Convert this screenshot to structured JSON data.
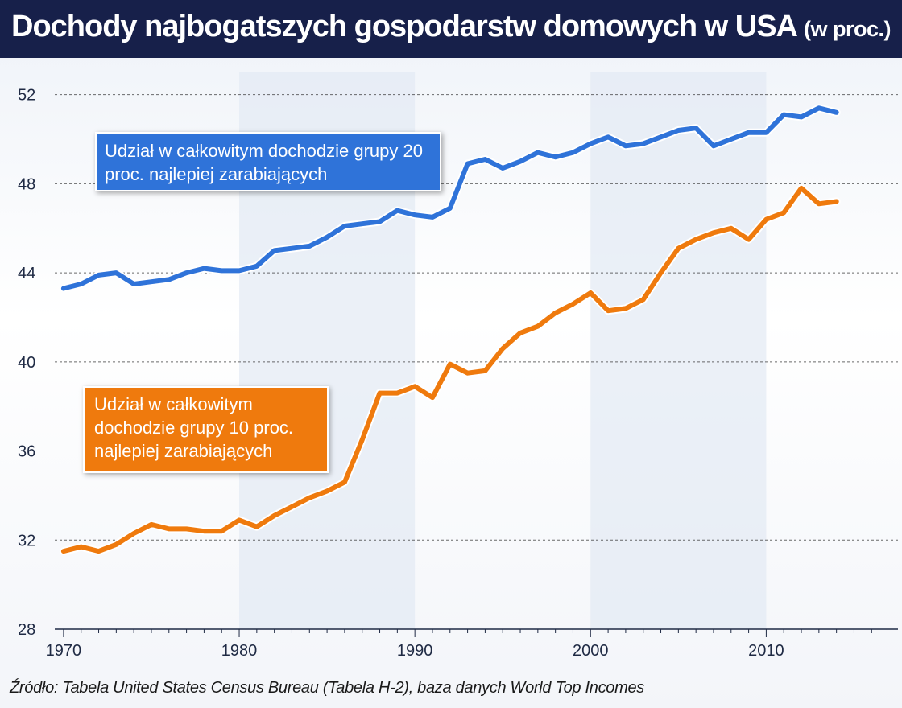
{
  "header": {
    "title": "Dochody najbogatszych gospodarstw domowych w USA",
    "unit": "(w proc.)"
  },
  "callouts": {
    "top20": "Udział w całkowitym dochodzie grupy 20 proc. najlepiej zarabiających",
    "top10": "Udział w całkowitym dochodzie grupy 10 proc. najlepiej zarabiających"
  },
  "source": "Źródło: Tabela United States Census Bureau (Tabela H-2), baza danych World Top Incomes",
  "chart_data": {
    "type": "line",
    "title": "Dochody najbogatszych gospodarstw domowych w USA (w proc.)",
    "xlabel": "",
    "ylabel": "",
    "xlim": [
      1969.5,
      2017.5
    ],
    "ylim": [
      28,
      53
    ],
    "xticks": [
      1970,
      1980,
      1990,
      2000,
      2010
    ],
    "yticks": [
      28,
      32,
      36,
      40,
      44,
      48,
      52
    ],
    "grid": "horizontal dashed",
    "series": [
      {
        "name": "Udział w całkowitym dochodzie grupy 20 proc. najlepiej zarabiających",
        "color": "#2f73d9",
        "x": [
          1970,
          1971,
          1972,
          1973,
          1974,
          1975,
          1976,
          1977,
          1978,
          1979,
          1980,
          1981,
          1982,
          1983,
          1984,
          1985,
          1986,
          1987,
          1988,
          1989,
          1990,
          1991,
          1992,
          1993,
          1994,
          1995,
          1996,
          1997,
          1998,
          1999,
          2000,
          2001,
          2002,
          2003,
          2004,
          2005,
          2006,
          2007,
          2008,
          2009,
          2010,
          2011,
          2012,
          2013,
          2014
        ],
        "values": [
          43.3,
          43.5,
          43.9,
          44.0,
          43.5,
          43.6,
          43.7,
          44.0,
          44.2,
          44.1,
          44.1,
          44.3,
          45.0,
          45.1,
          45.2,
          45.6,
          46.1,
          46.2,
          46.3,
          46.8,
          46.6,
          46.5,
          46.9,
          48.9,
          49.1,
          48.7,
          49.0,
          49.4,
          49.2,
          49.4,
          49.8,
          50.1,
          49.7,
          49.8,
          50.1,
          50.4,
          50.5,
          49.7,
          50.0,
          50.3,
          50.3,
          51.1,
          51.0,
          51.4,
          51.2
        ]
      },
      {
        "name": "Udział w całkowitym dochodzie grupy 10 proc. najlepiej zarabiających",
        "color": "#ef7a0d",
        "x": [
          1970,
          1971,
          1972,
          1973,
          1974,
          1975,
          1976,
          1977,
          1978,
          1979,
          1980,
          1981,
          1982,
          1983,
          1984,
          1985,
          1986,
          1987,
          1988,
          1989,
          1990,
          1991,
          1992,
          1993,
          1994,
          1995,
          1996,
          1997,
          1998,
          1999,
          2000,
          2001,
          2002,
          2003,
          2004,
          2005,
          2006,
          2007,
          2008,
          2009,
          2010,
          2011,
          2012,
          2013,
          2014
        ],
        "values": [
          31.5,
          31.7,
          31.5,
          31.8,
          32.3,
          32.7,
          32.5,
          32.5,
          32.4,
          32.4,
          32.9,
          32.6,
          33.1,
          33.5,
          33.9,
          34.2,
          34.6,
          36.5,
          38.6,
          38.6,
          38.9,
          38.4,
          39.9,
          39.5,
          39.6,
          40.6,
          41.3,
          41.6,
          42.2,
          42.6,
          43.1,
          42.3,
          42.4,
          42.8,
          44.0,
          45.1,
          45.5,
          45.8,
          46.0,
          45.5,
          46.4,
          46.7,
          47.8,
          47.1,
          47.2
        ]
      }
    ]
  },
  "colors": {
    "header_bg": "#17204a",
    "blue": "#2f73d9",
    "orange": "#ef7a0d",
    "decade_band": "#e2e9f3",
    "grid": "#3a3a3a"
  }
}
